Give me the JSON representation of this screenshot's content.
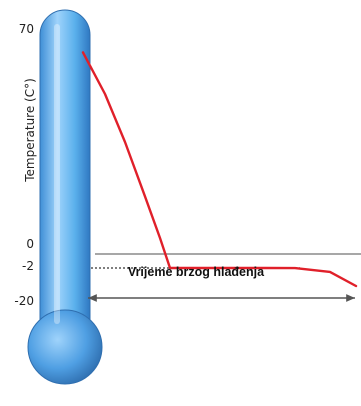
{
  "chart_data": {
    "type": "line",
    "ylabel": "Temperature (C°)",
    "y_ticks": [
      {
        "label": "70",
        "value": 70
      },
      {
        "label": "0",
        "value": 0
      },
      {
        "label": "-2",
        "value": -2
      },
      {
        "label": "-20",
        "value": -20
      }
    ],
    "series": [
      {
        "color": "#e0202a",
        "points": [
          [
            0,
            63
          ],
          [
            1,
            50
          ],
          [
            2,
            35
          ],
          [
            3,
            18
          ],
          [
            4,
            5
          ],
          [
            5,
            -2
          ],
          [
            6,
            -2
          ],
          [
            7,
            -2
          ],
          [
            8,
            -2
          ],
          [
            9,
            -2.2
          ],
          [
            10,
            -9
          ],
          [
            11,
            -22
          ]
        ]
      }
    ],
    "reference_lines": [
      {
        "value": 0,
        "style": "solid",
        "color": "#888888"
      },
      {
        "value": -2,
        "style": "dotted",
        "color": "#555555"
      }
    ],
    "annotation": {
      "text": "Vrijeme brzog hlađenja",
      "arrow": "double",
      "y_value": -19.5
    }
  },
  "colors": {
    "thermometer_fill": "#5ab0ec",
    "thermometer_edge": "#2f6fb0",
    "curve": "#e0202a"
  }
}
